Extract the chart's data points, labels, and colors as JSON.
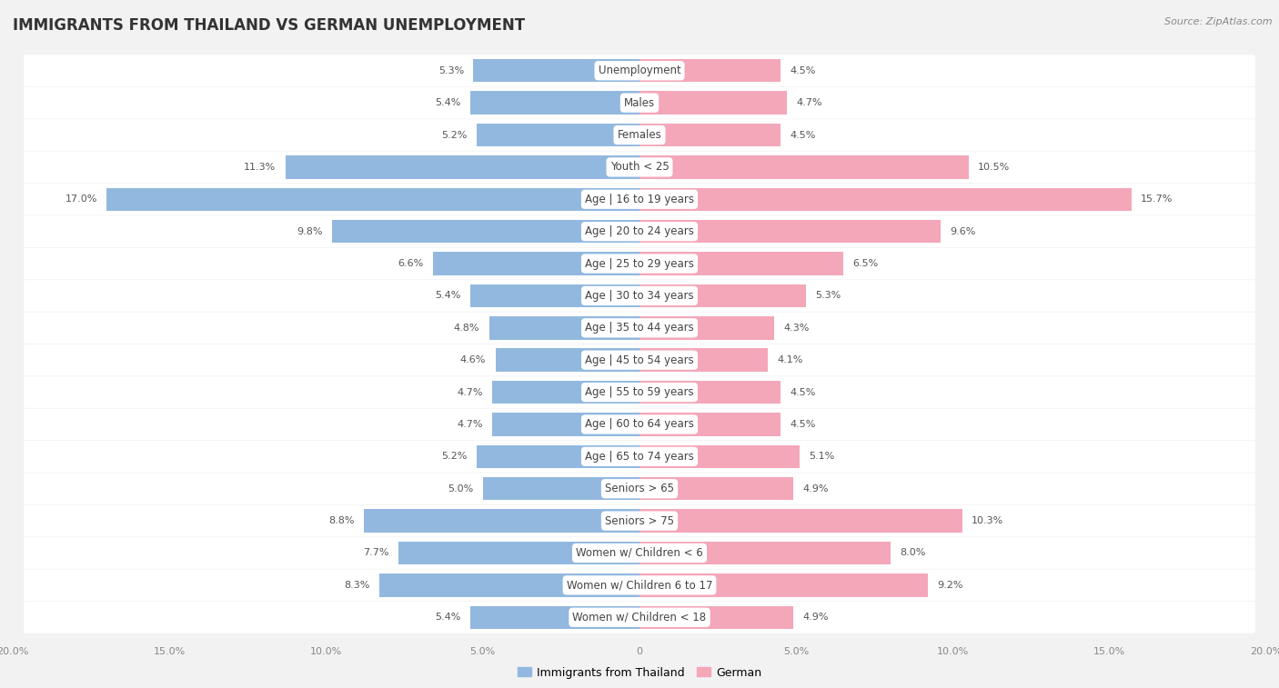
{
  "title": "IMMIGRANTS FROM THAILAND VS GERMAN UNEMPLOYMENT",
  "source": "Source: ZipAtlas.com",
  "categories": [
    "Unemployment",
    "Males",
    "Females",
    "Youth < 25",
    "Age | 16 to 19 years",
    "Age | 20 to 24 years",
    "Age | 25 to 29 years",
    "Age | 30 to 34 years",
    "Age | 35 to 44 years",
    "Age | 45 to 54 years",
    "Age | 55 to 59 years",
    "Age | 60 to 64 years",
    "Age | 65 to 74 years",
    "Seniors > 65",
    "Seniors > 75",
    "Women w/ Children < 6",
    "Women w/ Children 6 to 17",
    "Women w/ Children < 18"
  ],
  "left_values": [
    5.3,
    5.4,
    5.2,
    11.3,
    17.0,
    9.8,
    6.6,
    5.4,
    4.8,
    4.6,
    4.7,
    4.7,
    5.2,
    5.0,
    8.8,
    7.7,
    8.3,
    5.4
  ],
  "right_values": [
    4.5,
    4.7,
    4.5,
    10.5,
    15.7,
    9.6,
    6.5,
    5.3,
    4.3,
    4.1,
    4.5,
    4.5,
    5.1,
    4.9,
    10.3,
    8.0,
    9.2,
    4.9
  ],
  "left_color": "#92b8df",
  "right_color": "#f4a7b9",
  "background_color": "#f2f2f2",
  "row_bg_color": "#ffffff",
  "row_alt_color": "#e8e8e8",
  "label_bg_color": "#ffffff",
  "xlim": 20.0,
  "legend_left": "Immigrants from Thailand",
  "legend_right": "German",
  "title_fontsize": 12,
  "label_fontsize": 8.5,
  "value_fontsize": 8,
  "source_fontsize": 8,
  "xtick_labels": [
    "20.0%",
    "15.0%",
    "10.0%",
    "5.0%",
    "0",
    "5.0%",
    "10.0%",
    "15.0%",
    "20.0%"
  ],
  "xtick_positions": [
    -20,
    -15,
    -10,
    -5,
    0,
    5,
    10,
    15,
    20
  ]
}
